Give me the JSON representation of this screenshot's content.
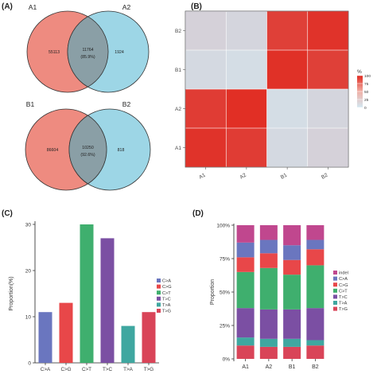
{
  "panels": {
    "A": "(A)",
    "B": "(B)",
    "C": "(C)",
    "D": "(D)"
  },
  "colors": {
    "venn_left": "#ee8b80",
    "venn_right": "#9dd6e6",
    "venn_overlap": "#8a9fa6",
    "heat_high": "#e1291f",
    "heat_low": "#d3e8f2"
  },
  "venn": [
    {
      "left_label": "A1",
      "right_label": "A2",
      "left_only": "55113",
      "overlap": "11764",
      "overlap_pct": "(85.9%)",
      "right_only": "1924"
    },
    {
      "left_label": "B1",
      "right_label": "B2",
      "left_only": "86604",
      "overlap": "10250",
      "overlap_pct": "(92.6%)",
      "right_only": "818"
    }
  ],
  "chart_data": [
    {
      "panel": "B",
      "type": "heatmap",
      "x_labels": [
        "A1",
        "A2",
        "B1",
        "B2"
      ],
      "y_labels": [
        "A1",
        "A2",
        "B1",
        "B2"
      ],
      "values": [
        [
          95,
          90,
          8,
          12
        ],
        [
          90,
          97,
          6,
          10
        ],
        [
          8,
          6,
          96,
          88
        ],
        [
          12,
          10,
          88,
          95
        ]
      ],
      "legend_title": "%",
      "legend_ticks": [
        0,
        25,
        50,
        75,
        100
      ],
      "range": [
        0,
        100
      ]
    },
    {
      "panel": "C",
      "type": "bar",
      "categories": [
        "C>A",
        "C>G",
        "C>T",
        "T>C",
        "T>A",
        "T>G"
      ],
      "values": [
        11,
        13,
        30,
        27,
        8,
        11
      ],
      "colors": [
        "#6a76bf",
        "#e84749",
        "#3faf6e",
        "#7b4fa3",
        "#3fa7a0",
        "#d94458"
      ],
      "ylabel": "Proportion(%)",
      "yticks": [
        0,
        10,
        20,
        30
      ],
      "ylim": [
        0,
        30
      ],
      "legend": [
        "C>A",
        "C>G",
        "C>T",
        "T>C",
        "T>A",
        "T>G"
      ]
    },
    {
      "panel": "D",
      "type": "bar",
      "stacked": true,
      "categories": [
        "A1",
        "A2",
        "B1",
        "B2"
      ],
      "ylabel": "Proportion",
      "yticks": [
        "0%",
        "25%",
        "50%",
        "75%",
        "100%"
      ],
      "series": [
        {
          "name": "T>G",
          "color": "#d94458",
          "values": [
            10,
            9,
            9,
            10
          ]
        },
        {
          "name": "T>A",
          "color": "#3fa7a0",
          "values": [
            6,
            6,
            6,
            4
          ]
        },
        {
          "name": "T>C",
          "color": "#7b4fa3",
          "values": [
            22,
            22,
            22,
            24
          ]
        },
        {
          "name": "C>T",
          "color": "#3faf6e",
          "values": [
            27,
            31,
            26,
            32
          ]
        },
        {
          "name": "C>G",
          "color": "#e84749",
          "values": [
            11,
            11,
            11,
            12
          ]
        },
        {
          "name": "C>A",
          "color": "#6a76bf",
          "values": [
            11,
            10,
            11,
            7
          ]
        },
        {
          "name": "indel",
          "color": "#c0478e",
          "values": [
            13,
            11,
            15,
            11
          ]
        }
      ],
      "legend": [
        "indel",
        "C>A",
        "C>G",
        "C>T",
        "T>C",
        "T>A",
        "T>G"
      ]
    }
  ]
}
